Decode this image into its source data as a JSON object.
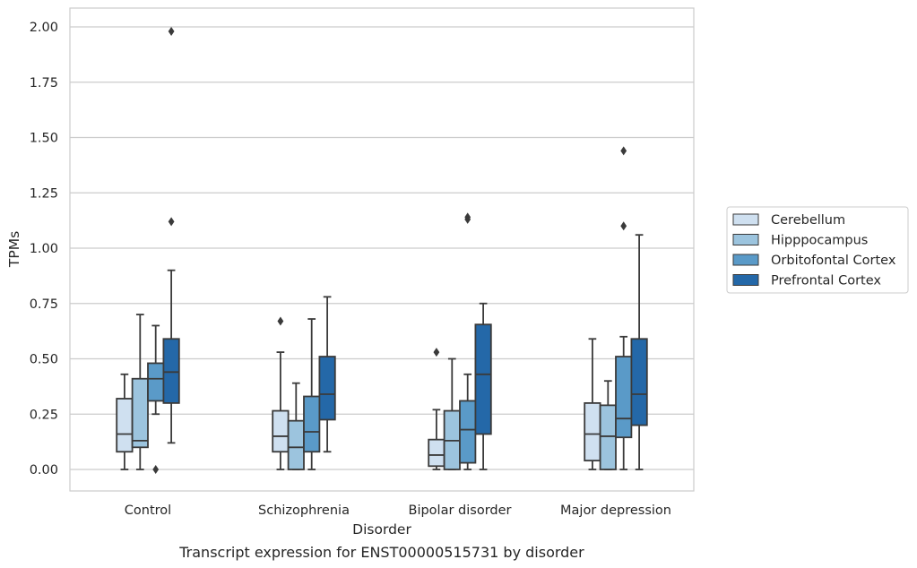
{
  "caption": "Transcript expression for ENST00000515731 by disorder",
  "chart_data": {
    "type": "box",
    "xlabel": "Disorder",
    "ylabel": "TPMs",
    "ylim": [
      -0.1,
      2.08
    ],
    "yticks": [
      0.0,
      0.25,
      0.5,
      0.75,
      1.0,
      1.25,
      1.5,
      1.75,
      2.0
    ],
    "ytick_labels": [
      "0.00",
      "0.25",
      "0.50",
      "0.75",
      "1.00",
      "1.25",
      "1.50",
      "1.75",
      "2.00"
    ],
    "grid": true,
    "legend_position": "right",
    "categories": [
      "Control",
      "Schizophrenia",
      "Bipolar disorder",
      "Major depression"
    ],
    "series": [
      {
        "name": "Cerebellum",
        "color": "#cfe0f0",
        "boxes": [
          {
            "whislo": 0.0,
            "q1": 0.08,
            "med": 0.16,
            "q3": 0.32,
            "whishi": 0.43,
            "fliers": []
          },
          {
            "whislo": 0.0,
            "q1": 0.08,
            "med": 0.15,
            "q3": 0.265,
            "whishi": 0.53,
            "fliers": [
              0.67
            ]
          },
          {
            "whislo": 0.0,
            "q1": 0.015,
            "med": 0.065,
            "q3": 0.135,
            "whishi": 0.27,
            "fliers": [
              0.53
            ]
          },
          {
            "whislo": 0.0,
            "q1": 0.04,
            "med": 0.16,
            "q3": 0.3,
            "whishi": 0.59,
            "fliers": []
          }
        ]
      },
      {
        "name": "Hipppocampus",
        "color": "#9cc4de",
        "boxes": [
          {
            "whislo": 0.0,
            "q1": 0.1,
            "med": 0.13,
            "q3": 0.41,
            "whishi": 0.7,
            "fliers": []
          },
          {
            "whislo": 0.0,
            "q1": 0.0,
            "med": 0.1,
            "q3": 0.22,
            "whishi": 0.39,
            "fliers": []
          },
          {
            "whislo": 0.0,
            "q1": 0.0,
            "med": 0.13,
            "q3": 0.265,
            "whishi": 0.5,
            "fliers": []
          },
          {
            "whislo": 0.0,
            "q1": 0.0,
            "med": 0.15,
            "q3": 0.29,
            "whishi": 0.4,
            "fliers": []
          }
        ]
      },
      {
        "name": "Orbitofontal Cortex",
        "color": "#5a9ac8",
        "boxes": [
          {
            "whislo": 0.25,
            "q1": 0.31,
            "med": 0.41,
            "q3": 0.48,
            "whishi": 0.65,
            "fliers": [
              0.0
            ]
          },
          {
            "whislo": 0.0,
            "q1": 0.08,
            "med": 0.17,
            "q3": 0.33,
            "whishi": 0.68,
            "fliers": []
          },
          {
            "whislo": 0.0,
            "q1": 0.03,
            "med": 0.18,
            "q3": 0.31,
            "whishi": 0.43,
            "fliers": [
              1.13,
              1.14
            ]
          },
          {
            "whislo": 0.0,
            "q1": 0.145,
            "med": 0.23,
            "q3": 0.51,
            "whishi": 0.6,
            "fliers": [
              1.1,
              1.44
            ]
          }
        ]
      },
      {
        "name": "Prefrontal Cortex",
        "color": "#2468a8",
        "boxes": [
          {
            "whislo": 0.12,
            "q1": 0.3,
            "med": 0.44,
            "q3": 0.59,
            "whishi": 0.9,
            "fliers": [
              1.12,
              1.98
            ]
          },
          {
            "whislo": 0.08,
            "q1": 0.225,
            "med": 0.34,
            "q3": 0.51,
            "whishi": 0.78,
            "fliers": []
          },
          {
            "whislo": 0.0,
            "q1": 0.16,
            "med": 0.43,
            "q3": 0.655,
            "whishi": 0.75,
            "fliers": []
          },
          {
            "whislo": 0.0,
            "q1": 0.2,
            "med": 0.34,
            "q3": 0.59,
            "whishi": 1.06,
            "fliers": []
          }
        ]
      }
    ]
  }
}
